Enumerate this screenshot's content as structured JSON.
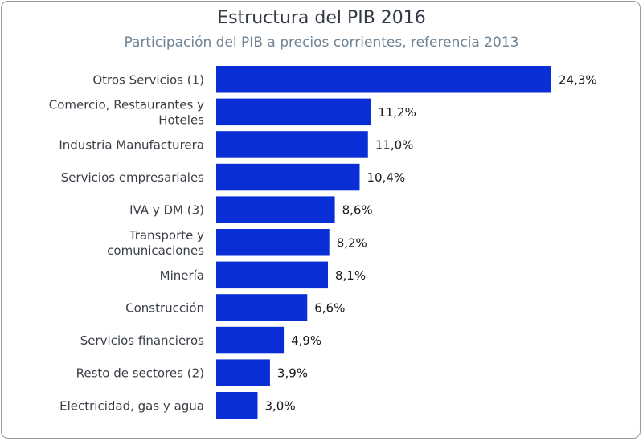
{
  "chart_data": {
    "type": "bar",
    "orientation": "horizontal",
    "title": "Estructura del PIB 2016",
    "subtitle": "Participación del PIB a precios corrientes, referencia 2013",
    "categories": [
      "Otros Servicios (1)",
      "Comercio, Restaurantes y Hoteles",
      "Industria Manufacturera",
      "Servicios empresariales",
      "IVA y DM (3)",
      "Transporte y comunicaciones",
      "Minería",
      "Construcción",
      "Servicios financieros",
      "Resto de sectores (2)",
      "Electricidad, gas y agua"
    ],
    "category_lines": [
      [
        "Otros Servicios (1)"
      ],
      [
        "Comercio, Restaurantes y",
        "Hoteles"
      ],
      [
        "Industria Manufacturera"
      ],
      [
        "Servicios empresariales"
      ],
      [
        "IVA y DM (3)"
      ],
      [
        "Transporte y",
        "comunicaciones"
      ],
      [
        "Minería"
      ],
      [
        "Construcción"
      ],
      [
        "Servicios financieros"
      ],
      [
        "Resto de sectores (2)"
      ],
      [
        "Electricidad, gas y agua"
      ]
    ],
    "values": [
      24.3,
      11.2,
      11.0,
      10.4,
      8.6,
      8.2,
      8.1,
      6.6,
      4.9,
      3.9,
      3.0
    ],
    "value_labels": [
      "24,3%",
      "11,2%",
      "11,0%",
      "10,4%",
      "8,6%",
      "8,2%",
      "8,1%",
      "6,6%",
      "4,9%",
      "3,9%",
      "3,0%"
    ],
    "xlim": [
      0,
      24.3
    ],
    "grid": false,
    "legend": "none",
    "bar_color": "#0a2ed6"
  }
}
